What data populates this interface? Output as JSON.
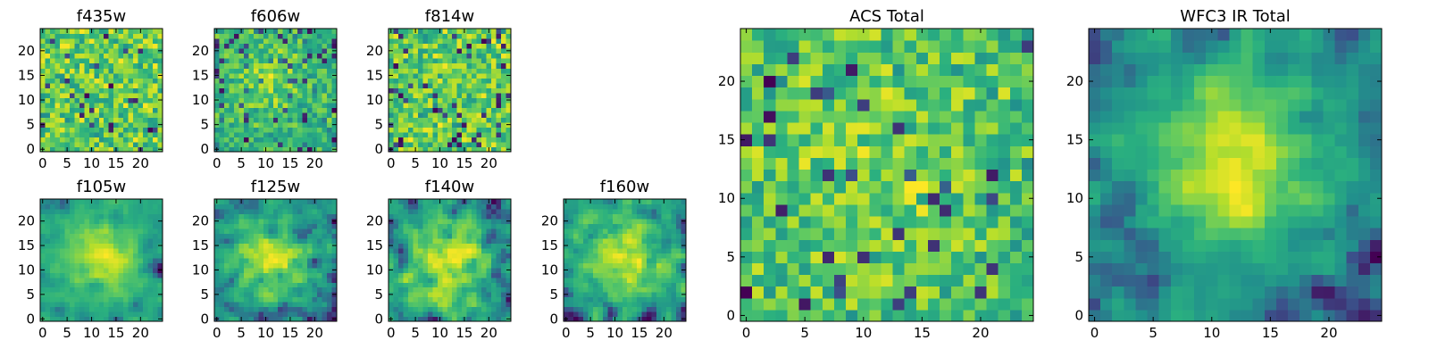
{
  "colors": {
    "viridis": [
      "#440154",
      "#3b528b",
      "#21918c",
      "#2ab07f",
      "#5ec962",
      "#b5de2b",
      "#fde725"
    ],
    "axis": "#000000",
    "background": "#ffffff"
  },
  "chart_data": [
    {
      "type": "heatmap",
      "title": "f435w",
      "size": 25,
      "xticks": [
        "0",
        "5",
        "10",
        "15",
        "20"
      ],
      "yticks": [
        "0",
        "5",
        "10",
        "15",
        "20"
      ],
      "seed": 11,
      "smooth": 0,
      "blobs": []
    },
    {
      "type": "heatmap",
      "title": "f606w",
      "size": 25,
      "xticks": [
        "0",
        "5",
        "10",
        "15",
        "20"
      ],
      "yticks": [
        "0",
        "5",
        "10",
        "15",
        "20"
      ],
      "seed": 23,
      "smooth": 0,
      "blobs": [
        [
          10,
          15,
          5,
          0.25
        ]
      ]
    },
    {
      "type": "heatmap",
      "title": "f814w",
      "size": 25,
      "xticks": [
        "0",
        "5",
        "10",
        "15",
        "20"
      ],
      "yticks": [
        "0",
        "5",
        "10",
        "15",
        "20"
      ],
      "seed": 37,
      "smooth": 0,
      "blobs": []
    },
    {
      "type": "heatmap",
      "title": "f105w",
      "size": 25,
      "xticks": [
        "0",
        "5",
        "10",
        "15",
        "20"
      ],
      "yticks": [
        "0",
        "5",
        "10",
        "15",
        "20"
      ],
      "seed": 41,
      "smooth": 1,
      "blobs": [
        [
          12,
          13,
          5,
          0.4
        ]
      ]
    },
    {
      "type": "heatmap",
      "title": "f125w",
      "size": 25,
      "xticks": [
        "0",
        "5",
        "10",
        "15",
        "20"
      ],
      "yticks": [
        "0",
        "5",
        "10",
        "15",
        "20"
      ],
      "seed": 53,
      "smooth": 1,
      "blobs": [
        [
          11,
          12,
          6,
          0.35
        ]
      ]
    },
    {
      "type": "heatmap",
      "title": "f140w",
      "size": 25,
      "xticks": [
        "0",
        "5",
        "10",
        "15",
        "20"
      ],
      "yticks": [
        "0",
        "5",
        "10",
        "15",
        "20"
      ],
      "seed": 67,
      "smooth": 1,
      "blobs": [
        [
          12,
          11,
          7,
          0.35
        ]
      ]
    },
    {
      "type": "heatmap",
      "title": "f160w",
      "size": 25,
      "xticks": [
        "0",
        "5",
        "10",
        "15",
        "20"
      ],
      "yticks": [
        "0",
        "5",
        "10",
        "15",
        "20"
      ],
      "seed": 79,
      "smooth": 1,
      "blobs": [
        [
          12,
          13,
          6,
          0.35
        ]
      ]
    },
    {
      "type": "heatmap",
      "title": "ACS Total",
      "size": 25,
      "xticks": [
        "0",
        "5",
        "10",
        "15",
        "20"
      ],
      "yticks": [
        "0",
        "5",
        "10",
        "15",
        "20"
      ],
      "seed": 97,
      "smooth": 0,
      "blobs": [
        [
          11,
          12,
          7,
          0.15
        ]
      ]
    },
    {
      "type": "heatmap",
      "title": "WFC3 IR Total",
      "size": 25,
      "xticks": [
        "0",
        "5",
        "10",
        "15",
        "20"
      ],
      "yticks": [
        "0",
        "5",
        "10",
        "15",
        "20"
      ],
      "seed": 113,
      "smooth": 1,
      "blobs": [
        [
          12,
          13,
          5,
          0.5
        ]
      ]
    }
  ]
}
